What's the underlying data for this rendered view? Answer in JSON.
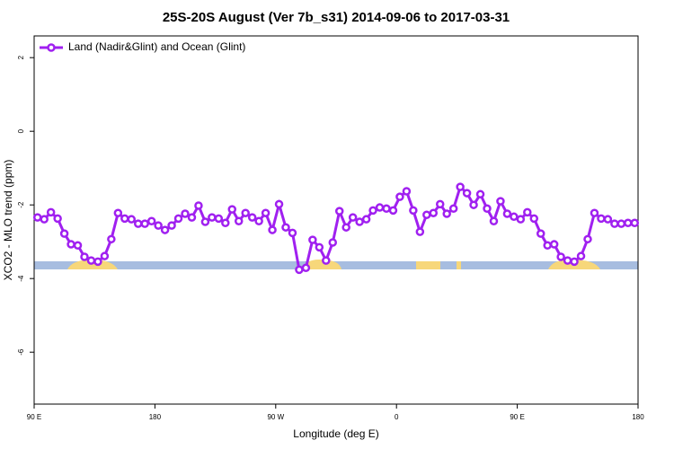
{
  "chart_data": {
    "type": "line",
    "title": "25S-20S August (Ver 7b_s31)   2014-09-06 to 2017-03-31",
    "x_label": "Longitude (deg E)",
    "y_label": "XCO2 - MLO trend (ppm)",
    "x": [
      92.5,
      97.5,
      102.5,
      107.5,
      112.5,
      117.5,
      122.5,
      127.5,
      132.5,
      137.5,
      142.5,
      147.5,
      152.5,
      157.5,
      162.5,
      167.5,
      172.5,
      177.5,
      182.5,
      187.5,
      192.5,
      197.5,
      202.5,
      207.5,
      212.5,
      217.5,
      222.5,
      227.5,
      232.5,
      237.5,
      242.5,
      247.5,
      252.5,
      257.5,
      262.5,
      267.5,
      272.5,
      277.5,
      282.5,
      287.5,
      292.5,
      297.5,
      302.5,
      307.5,
      312.5,
      317.5,
      322.5,
      327.5,
      332.5,
      337.5,
      342.5,
      347.5,
      352.5,
      357.5,
      362.5,
      367.5,
      372.5,
      377.5,
      382.5,
      387.5,
      392.5,
      397.5,
      402.5,
      407.5,
      412.5,
      417.5,
      422.5,
      427.5,
      432.5,
      437.5,
      442.5,
      447.5,
      452.5,
      457.5,
      462.5,
      467.5,
      472.5,
      477.5,
      482.5,
      487.5,
      492.5,
      497.5,
      502.5,
      507.5,
      512.5,
      517.5,
      522.5,
      527.5,
      532.5,
      537.5
    ],
    "series": [
      {
        "name": "Land (Nadir&Glint) and Ocean (Glint)",
        "color": "#a020f0",
        "values": [
          -2.34,
          -2.39,
          -2.2,
          -2.37,
          -2.78,
          -3.07,
          -3.1,
          -3.41,
          -3.51,
          -3.54,
          -3.39,
          -2.93,
          -2.22,
          -2.37,
          -2.39,
          -2.51,
          -2.51,
          -2.44,
          -2.56,
          -2.68,
          -2.56,
          -2.37,
          -2.24,
          -2.34,
          -2.02,
          -2.46,
          -2.34,
          -2.37,
          -2.49,
          -2.12,
          -2.44,
          -2.22,
          -2.34,
          -2.44,
          -2.22,
          -2.68,
          -1.98,
          -2.61,
          -2.76,
          -3.76,
          -3.71,
          -2.95,
          -3.15,
          -3.51,
          -3.02,
          -2.17,
          -2.61,
          -2.34,
          -2.46,
          -2.39,
          -2.15,
          -2.07,
          -2.1,
          -2.15,
          -1.78,
          -1.63,
          -2.15,
          -2.73,
          -2.27,
          -2.22,
          -1.98,
          -2.24,
          -2.1,
          -1.51,
          -1.68,
          -2.0,
          -1.71,
          -2.1,
          -2.44,
          -1.9,
          -2.24,
          -2.32,
          -2.39,
          -2.2,
          -2.37,
          -2.78,
          -3.1,
          -3.07,
          -3.41,
          -3.51,
          -3.54,
          -3.39,
          -2.93,
          -2.22,
          -2.37,
          -2.39,
          -2.51,
          -2.51,
          -2.49,
          -2.49
        ]
      }
    ],
    "xlim": [
      90,
      540
    ],
    "xticks": [
      {
        "value": 90,
        "label": "90 E"
      },
      {
        "value": 180,
        "label": "180"
      },
      {
        "value": 270,
        "label": "90 W"
      },
      {
        "value": 360,
        "label": "0"
      },
      {
        "value": 450,
        "label": "90 E"
      },
      {
        "value": 540,
        "label": "180"
      }
    ],
    "ylim": [
      -7.41,
      2.59
    ],
    "yticks": [
      2,
      0,
      -2,
      -4,
      -6
    ],
    "legend": "top-left"
  }
}
